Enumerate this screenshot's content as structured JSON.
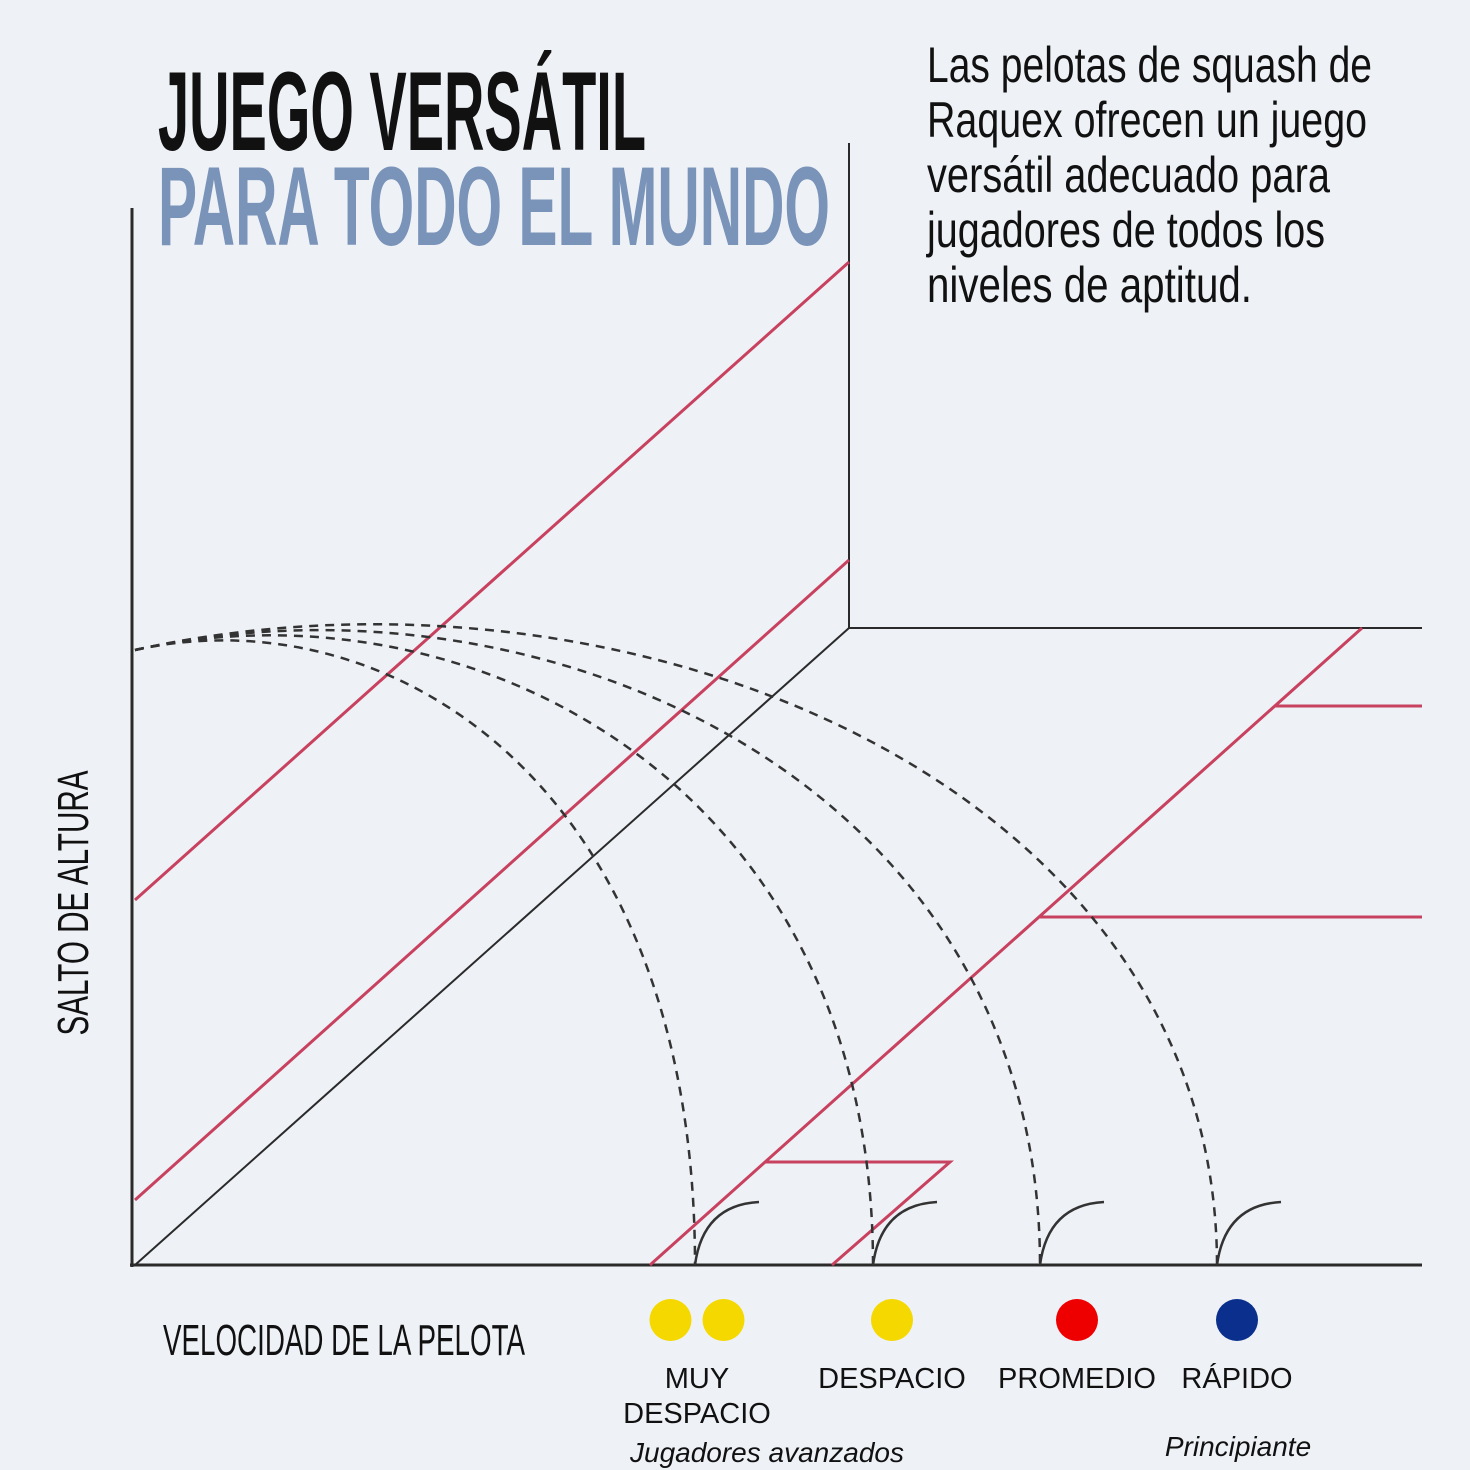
{
  "title": {
    "line1": "JUEGO VERSÁTIL",
    "line2": "PARA TODO EL MUNDO"
  },
  "description": [
    "Las pelotas de squash de",
    "Raquex ofrecen un juego",
    "versátil adecuado para",
    "jugadores de todos los",
    "niveles de aptitud."
  ],
  "axes": {
    "y_label": "SALTO DE ALTURA",
    "x_label": "VELOCIDAD DE LA PELOTA"
  },
  "balls": [
    {
      "label": [
        "MUY",
        "DESPACIO"
      ],
      "colors": [
        "#f5d800",
        "#f5d800"
      ]
    },
    {
      "label": [
        "DESPACIO"
      ],
      "colors": [
        "#f5d800"
      ]
    },
    {
      "label": [
        "PROMEDIO"
      ],
      "colors": [
        "#ee0000"
      ]
    },
    {
      "label": [
        "RÁPIDO"
      ],
      "colors": [
        "#0a2f8c"
      ]
    }
  ],
  "levels": {
    "advanced": "Jugadores avanzados",
    "beginner": "Principiante"
  }
}
